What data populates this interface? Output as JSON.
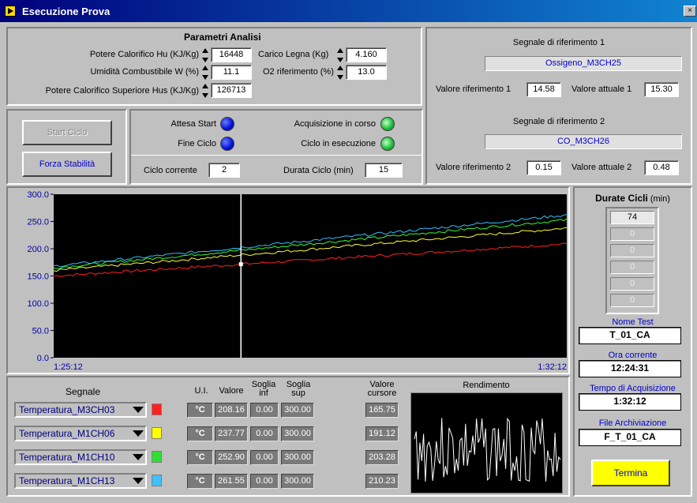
{
  "window": {
    "title": "Esecuzione Prova",
    "close_glyph": "×"
  },
  "params": {
    "heading": "Parametri Analisi",
    "hu_label": "Potere Calorifico Hu (KJ/Kg)",
    "hu_value": "16448",
    "carico_label": "Carico Legna (Kg)",
    "carico_value": "4.160",
    "umidita_label": "Umidità Combustibile W (%)",
    "umidita_value": "11.1",
    "o2_label": "O2 riferimento (%)",
    "o2_value": "13.0",
    "hus_label": "Potere Calorifico Superiore Hus (KJ/Kg)",
    "hus_value": "126713"
  },
  "ref1": {
    "heading": "Segnale di riferimento 1",
    "signal": "Ossigeno_M3CH25",
    "rif_label": "Valore riferimento 1",
    "rif_value": "14.58",
    "att_label": "Valore attuale 1",
    "att_value": "15.30"
  },
  "ref2": {
    "heading": "Segnale di riferimento 2",
    "signal": "CO_M3CH26",
    "rif_label": "Valore riferimento 2",
    "rif_value": "0.15",
    "att_label": "Valore attuale 2",
    "att_value": "0.48"
  },
  "controls": {
    "start_label": "Start Ciclo",
    "forza_label": "Forza Stabilità"
  },
  "status": {
    "attesa": "Attesa Start",
    "fine": "Fine Ciclo",
    "acquisizione": "Acquisizione in corso",
    "esecuzione": "Ciclo in esecuzione",
    "ciclo_label": "Ciclo corrente",
    "ciclo_value": "2",
    "durata_label": "Durata Ciclo (min)",
    "durata_value": "15"
  },
  "chart_data": {
    "type": "line",
    "x_start_label": "1:25:12",
    "x_end_label": "1:32:12",
    "ylim": [
      0,
      300
    ],
    "yticks": [
      "300.0",
      "250.0",
      "200.0",
      "150.0",
      "100.0",
      "50.0",
      "0.0"
    ],
    "cursor_x_fraction": 0.365,
    "series": [
      {
        "color": "#ff2020",
        "start": 150,
        "end": 209
      },
      {
        "color": "#ffff30",
        "start": 160,
        "end": 238
      },
      {
        "color": "#30ff30",
        "start": 165,
        "end": 253
      },
      {
        "color": "#30c0ff",
        "start": 168,
        "end": 262
      }
    ]
  },
  "signals_table": {
    "headers": {
      "segnale": "Segnale",
      "ui": "U.I.",
      "valore": "Valore",
      "soglia_inf": "Soglia inf",
      "soglia_sup": "Soglia sup",
      "valore_cursore": "Valore cursore",
      "rendimento": "Rendimento"
    },
    "rows": [
      {
        "name": "Temperatura_M3CH03",
        "color": "#ff2020",
        "unit": "°C",
        "value": "208.16",
        "inf": "0.00",
        "sup": "300.00",
        "cursor": "165.75"
      },
      {
        "name": "Temperatura_M1CH06",
        "color": "#ffff00",
        "unit": "°C",
        "value": "237.77",
        "inf": "0.00",
        "sup": "300.00",
        "cursor": "191.12"
      },
      {
        "name": "Temperatura_M1CH10",
        "color": "#30e030",
        "unit": "°C",
        "value": "252.90",
        "inf": "0.00",
        "sup": "300.00",
        "cursor": "203.28"
      },
      {
        "name": "Temperatura_M1CH13",
        "color": "#40c0ff",
        "unit": "°C",
        "value": "261.55",
        "inf": "0.00",
        "sup": "300.00",
        "cursor": "210.23"
      }
    ]
  },
  "durate": {
    "heading": "Durate Cicli",
    "unit": "(min)",
    "values": [
      "74",
      "0",
      "0",
      "0",
      "0",
      "0"
    ]
  },
  "info": {
    "nome_label": "Nome Test",
    "nome_value": "T_01_CA",
    "ora_label": "Ora corrente",
    "ora_value": "12:24:31",
    "tempo_label": "Tempo di Acquisizione",
    "tempo_value": "1:32:12",
    "file_label": "File Archiviazione",
    "file_value": "F_T_01_CA",
    "termina_label": "Termina"
  }
}
